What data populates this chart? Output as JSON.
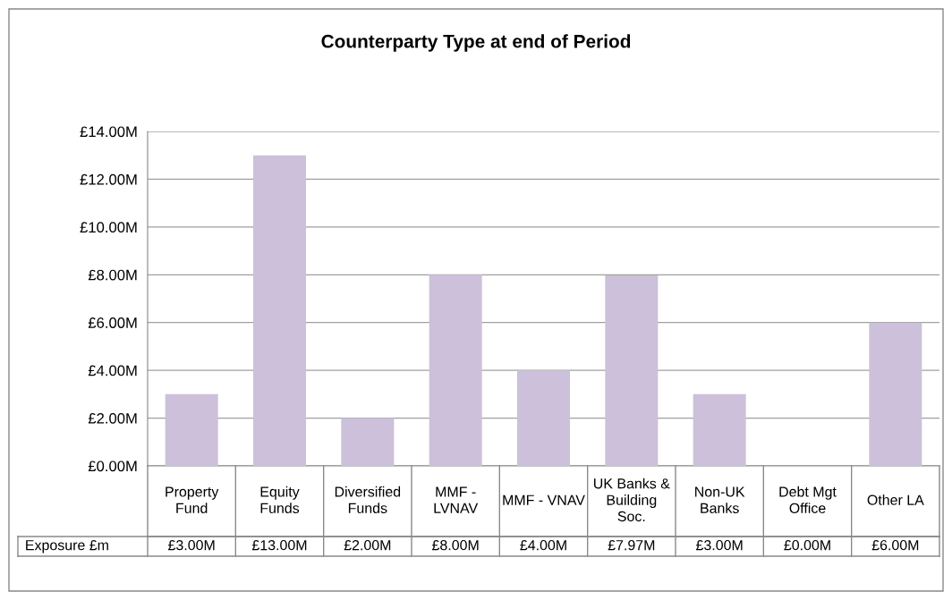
{
  "chart_data": {
    "type": "bar",
    "title": "Counterparty Type at end of Period",
    "categories": [
      "Property Fund",
      "Equity Funds",
      "Diversified Funds",
      "MMF - LVNAV",
      "MMF - VNAV",
      "UK Banks & Building Soc.",
      "Non-UK Banks",
      "Debt Mgt Office",
      "Other LA"
    ],
    "series": [
      {
        "name": "Exposure £m",
        "color": "#ccc0da",
        "values": [
          3,
          13,
          2,
          8,
          4,
          7.97,
          3,
          0,
          6
        ],
        "value_labels": [
          "£3.00M",
          "£13.00M",
          "£2.00M",
          "£8.00M",
          "£4.00M",
          "£7.97M",
          "£3.00M",
          "£0.00M",
          "£6.00M"
        ]
      }
    ],
    "ylim": [
      0,
      14
    ],
    "yticks": [
      {
        "value": 0,
        "label": "£0.00M"
      },
      {
        "value": 2,
        "label": "£2.00M"
      },
      {
        "value": 4,
        "label": "£4.00M"
      },
      {
        "value": 6,
        "label": "£6.00M"
      },
      {
        "value": 8,
        "label": "£8.00M"
      },
      {
        "value": 10,
        "label": "£10.00M"
      },
      {
        "value": 12,
        "label": "£12.00M"
      },
      {
        "value": 14,
        "label": "£14.00M"
      }
    ],
    "grid": "y",
    "legend": false
  }
}
